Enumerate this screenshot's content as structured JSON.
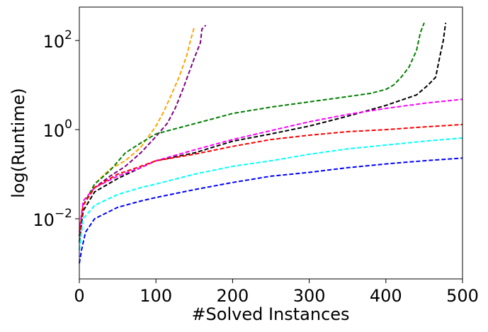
{
  "chart_data": {
    "type": "line",
    "title": "",
    "xlabel": "#Solved Instances",
    "ylabel": "log(Runtime)",
    "xlim": [
      0,
      500
    ],
    "ylim_log10": [
      -3.35,
      2.75
    ],
    "y_scale": "log",
    "grid": false,
    "legend": "none",
    "x_ticks": [
      {
        "value": 0,
        "label": "0"
      },
      {
        "value": 100,
        "label": "100"
      },
      {
        "value": 200,
        "label": "200"
      },
      {
        "value": 300,
        "label": "300"
      },
      {
        "value": 400,
        "label": "400"
      },
      {
        "value": 500,
        "label": "500"
      }
    ],
    "y_ticks": [
      {
        "value": 0.01,
        "base": "10",
        "exp": "−2"
      },
      {
        "value": 1,
        "base": "10",
        "exp": "0"
      },
      {
        "value": 100,
        "base": "10",
        "exp": "2"
      }
    ],
    "series": [
      {
        "color": "#ffa500",
        "points": [
          [
            0,
            0.004
          ],
          [
            5,
            0.02
          ],
          [
            20,
            0.06
          ],
          [
            40,
            0.13
          ],
          [
            60,
            0.2
          ],
          [
            80,
            0.4
          ],
          [
            100,
            1.2
          ],
          [
            110,
            2.5
          ],
          [
            120,
            6
          ],
          [
            130,
            15
          ],
          [
            140,
            45
          ],
          [
            145,
            100
          ],
          [
            150,
            200
          ]
        ]
      },
      {
        "color": "#800080",
        "points": [
          [
            0,
            0.004
          ],
          [
            5,
            0.02
          ],
          [
            20,
            0.05
          ],
          [
            40,
            0.09
          ],
          [
            60,
            0.15
          ],
          [
            80,
            0.3
          ],
          [
            100,
            0.7
          ],
          [
            115,
            1.4
          ],
          [
            125,
            3
          ],
          [
            135,
            8
          ],
          [
            150,
            40
          ],
          [
            158,
            90
          ],
          [
            160,
            180
          ],
          [
            165,
            220
          ]
        ]
      },
      {
        "color": "#008000",
        "points": [
          [
            0,
            0.004
          ],
          [
            5,
            0.02
          ],
          [
            20,
            0.06
          ],
          [
            40,
            0.12
          ],
          [
            60,
            0.3
          ],
          [
            80,
            0.5
          ],
          [
            100,
            0.8
          ],
          [
            130,
            1.1
          ],
          [
            160,
            1.5
          ],
          [
            200,
            2.3
          ],
          [
            250,
            3.2
          ],
          [
            300,
            4.2
          ],
          [
            350,
            5.5
          ],
          [
            380,
            6.5
          ],
          [
            400,
            8
          ],
          [
            410,
            10
          ],
          [
            420,
            15
          ],
          [
            430,
            25
          ],
          [
            440,
            60
          ],
          [
            445,
            150
          ],
          [
            450,
            250
          ]
        ]
      },
      {
        "color": "#000000",
        "points": [
          [
            0,
            0.003
          ],
          [
            5,
            0.015
          ],
          [
            20,
            0.04
          ],
          [
            50,
            0.08
          ],
          [
            80,
            0.14
          ],
          [
            100,
            0.2
          ],
          [
            150,
            0.3
          ],
          [
            200,
            0.55
          ],
          [
            250,
            0.8
          ],
          [
            300,
            1.2
          ],
          [
            350,
            2
          ],
          [
            400,
            3.5
          ],
          [
            440,
            6
          ],
          [
            455,
            10
          ],
          [
            465,
            15
          ],
          [
            470,
            40
          ],
          [
            475,
            100
          ],
          [
            478,
            250
          ]
        ]
      },
      {
        "color": "#ff00ff",
        "points": [
          [
            0,
            0.005
          ],
          [
            5,
            0.025
          ],
          [
            20,
            0.05
          ],
          [
            50,
            0.09
          ],
          [
            80,
            0.14
          ],
          [
            100,
            0.2
          ],
          [
            150,
            0.35
          ],
          [
            200,
            0.6
          ],
          [
            250,
            0.95
          ],
          [
            300,
            1.5
          ],
          [
            350,
            2.2
          ],
          [
            400,
            3
          ],
          [
            450,
            3.9
          ],
          [
            500,
            4.8
          ]
        ]
      },
      {
        "color": "#ff0000",
        "points": [
          [
            0,
            0.004
          ],
          [
            5,
            0.02
          ],
          [
            20,
            0.05
          ],
          [
            50,
            0.1
          ],
          [
            80,
            0.15
          ],
          [
            100,
            0.2
          ],
          [
            150,
            0.28
          ],
          [
            200,
            0.42
          ],
          [
            250,
            0.6
          ],
          [
            300,
            0.75
          ],
          [
            350,
            0.9
          ],
          [
            400,
            1
          ],
          [
            450,
            1.15
          ],
          [
            500,
            1.3
          ]
        ]
      },
      {
        "color": "#00ffff",
        "points": [
          [
            0,
            0.002
          ],
          [
            5,
            0.01
          ],
          [
            20,
            0.02
          ],
          [
            50,
            0.035
          ],
          [
            80,
            0.05
          ],
          [
            100,
            0.06
          ],
          [
            150,
            0.1
          ],
          [
            200,
            0.15
          ],
          [
            250,
            0.2
          ],
          [
            300,
            0.28
          ],
          [
            350,
            0.37
          ],
          [
            400,
            0.45
          ],
          [
            450,
            0.55
          ],
          [
            500,
            0.65
          ]
        ]
      },
      {
        "color": "#0000ff",
        "points": [
          [
            0,
            0.001
          ],
          [
            3,
            0.002
          ],
          [
            8,
            0.005
          ],
          [
            20,
            0.01
          ],
          [
            50,
            0.018
          ],
          [
            80,
            0.025
          ],
          [
            100,
            0.03
          ],
          [
            150,
            0.045
          ],
          [
            200,
            0.065
          ],
          [
            250,
            0.09
          ],
          [
            300,
            0.11
          ],
          [
            350,
            0.14
          ],
          [
            400,
            0.17
          ],
          [
            450,
            0.2
          ],
          [
            500,
            0.23
          ]
        ]
      }
    ]
  }
}
